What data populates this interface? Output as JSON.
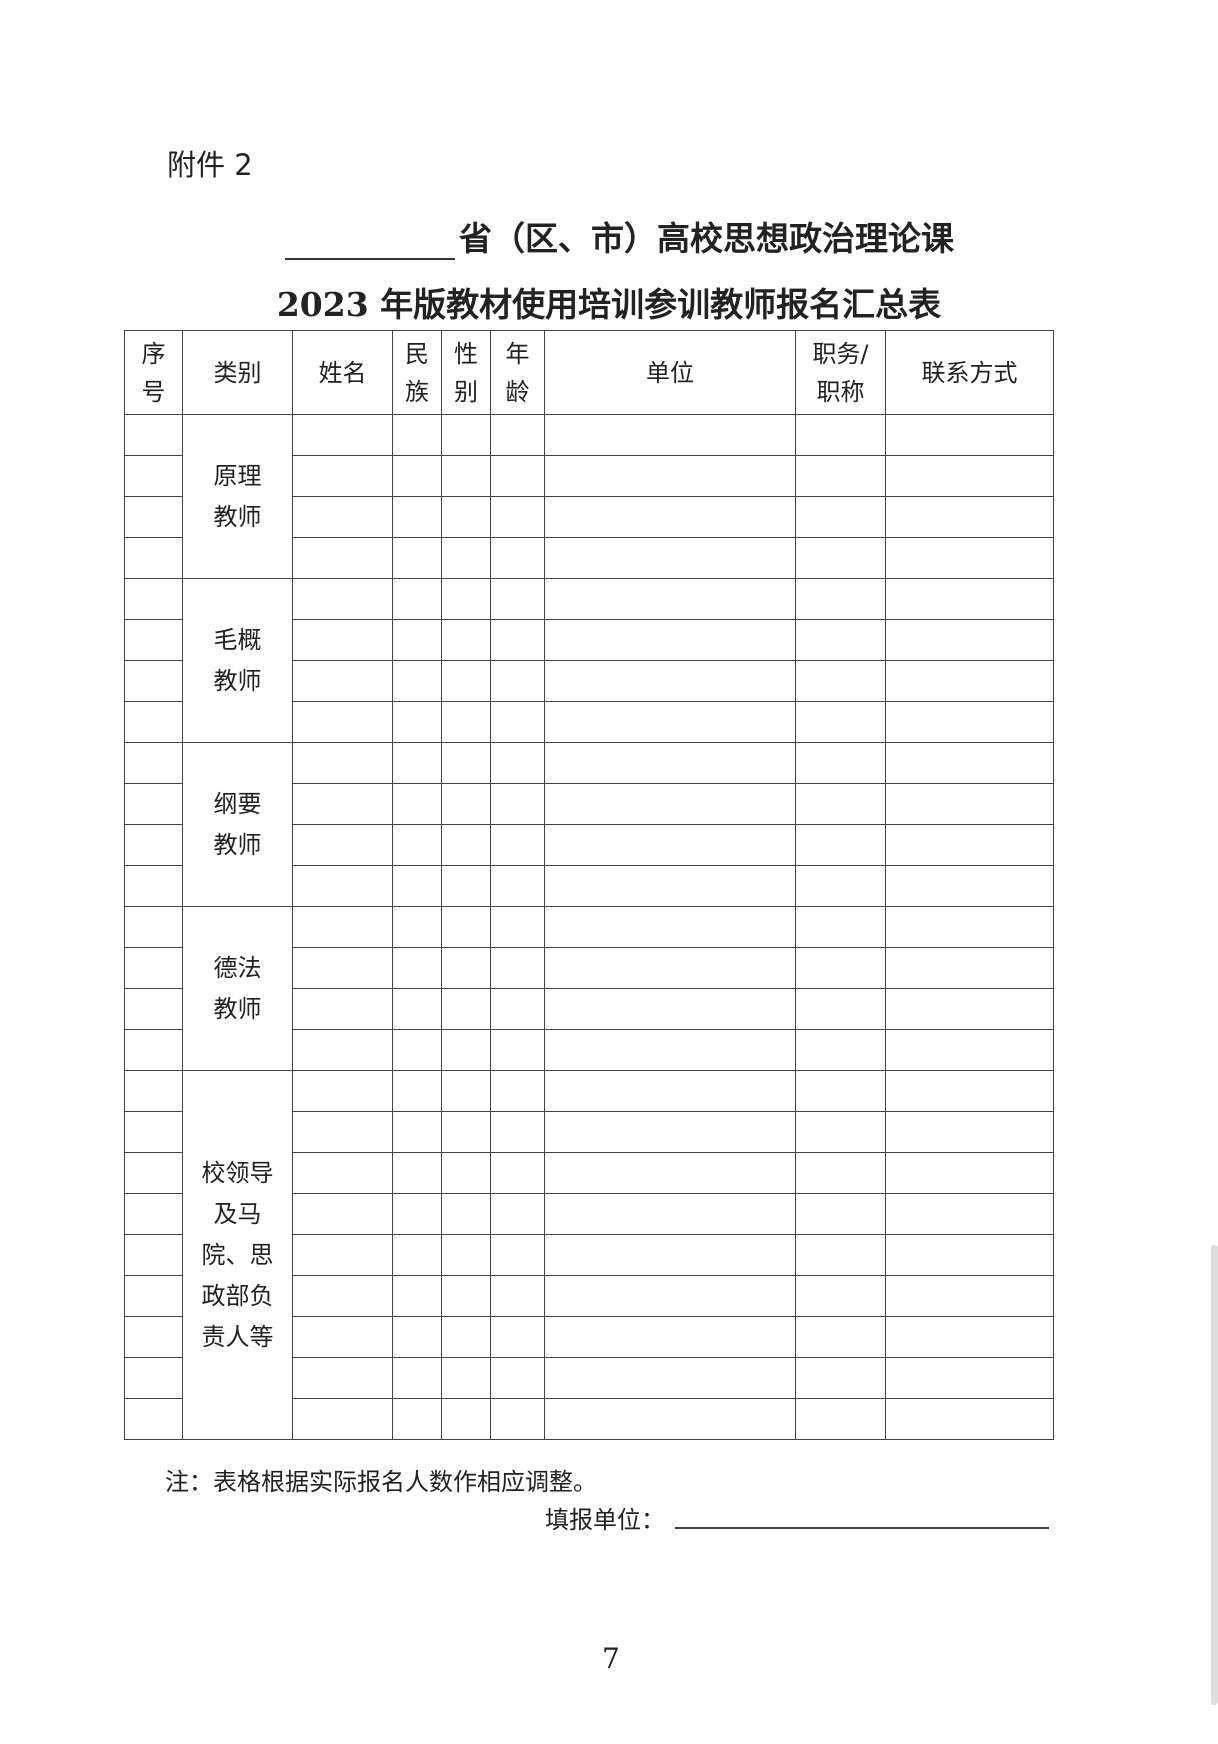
{
  "attachment_label": "附件 2",
  "title_line1": "省（区、市）高校思想政治理论课",
  "title_line2": "2023 年版教材使用培训参训教师报名汇总表",
  "table": {
    "headers": [
      "序号",
      "类别",
      "姓名",
      "民族",
      "性别",
      "年龄",
      "单位",
      "职务/职称",
      "联系方式"
    ],
    "header_lines": [
      [
        "序",
        "号"
      ],
      [
        "类别"
      ],
      [
        "姓名"
      ],
      [
        "民",
        "族"
      ],
      [
        "性",
        "别"
      ],
      [
        "年",
        "龄"
      ],
      [
        "单位"
      ],
      [
        "职务/",
        "职称"
      ],
      [
        "联系方式"
      ]
    ],
    "categories": [
      {
        "lines": [
          "原理",
          "教师"
        ],
        "rows": 4
      },
      {
        "lines": [
          "毛概",
          "教师"
        ],
        "rows": 4
      },
      {
        "lines": [
          "纲要",
          "教师"
        ],
        "rows": 4
      },
      {
        "lines": [
          "德法",
          "教师"
        ],
        "rows": 4
      },
      {
        "lines": [
          "校领导",
          "及马",
          "院、思",
          "政部负",
          "责人等"
        ],
        "rows": 9
      }
    ]
  },
  "note": "注：表格根据实际报名人数作相应调整。",
  "fill_unit_label": "填报单位：",
  "page_number": "7"
}
